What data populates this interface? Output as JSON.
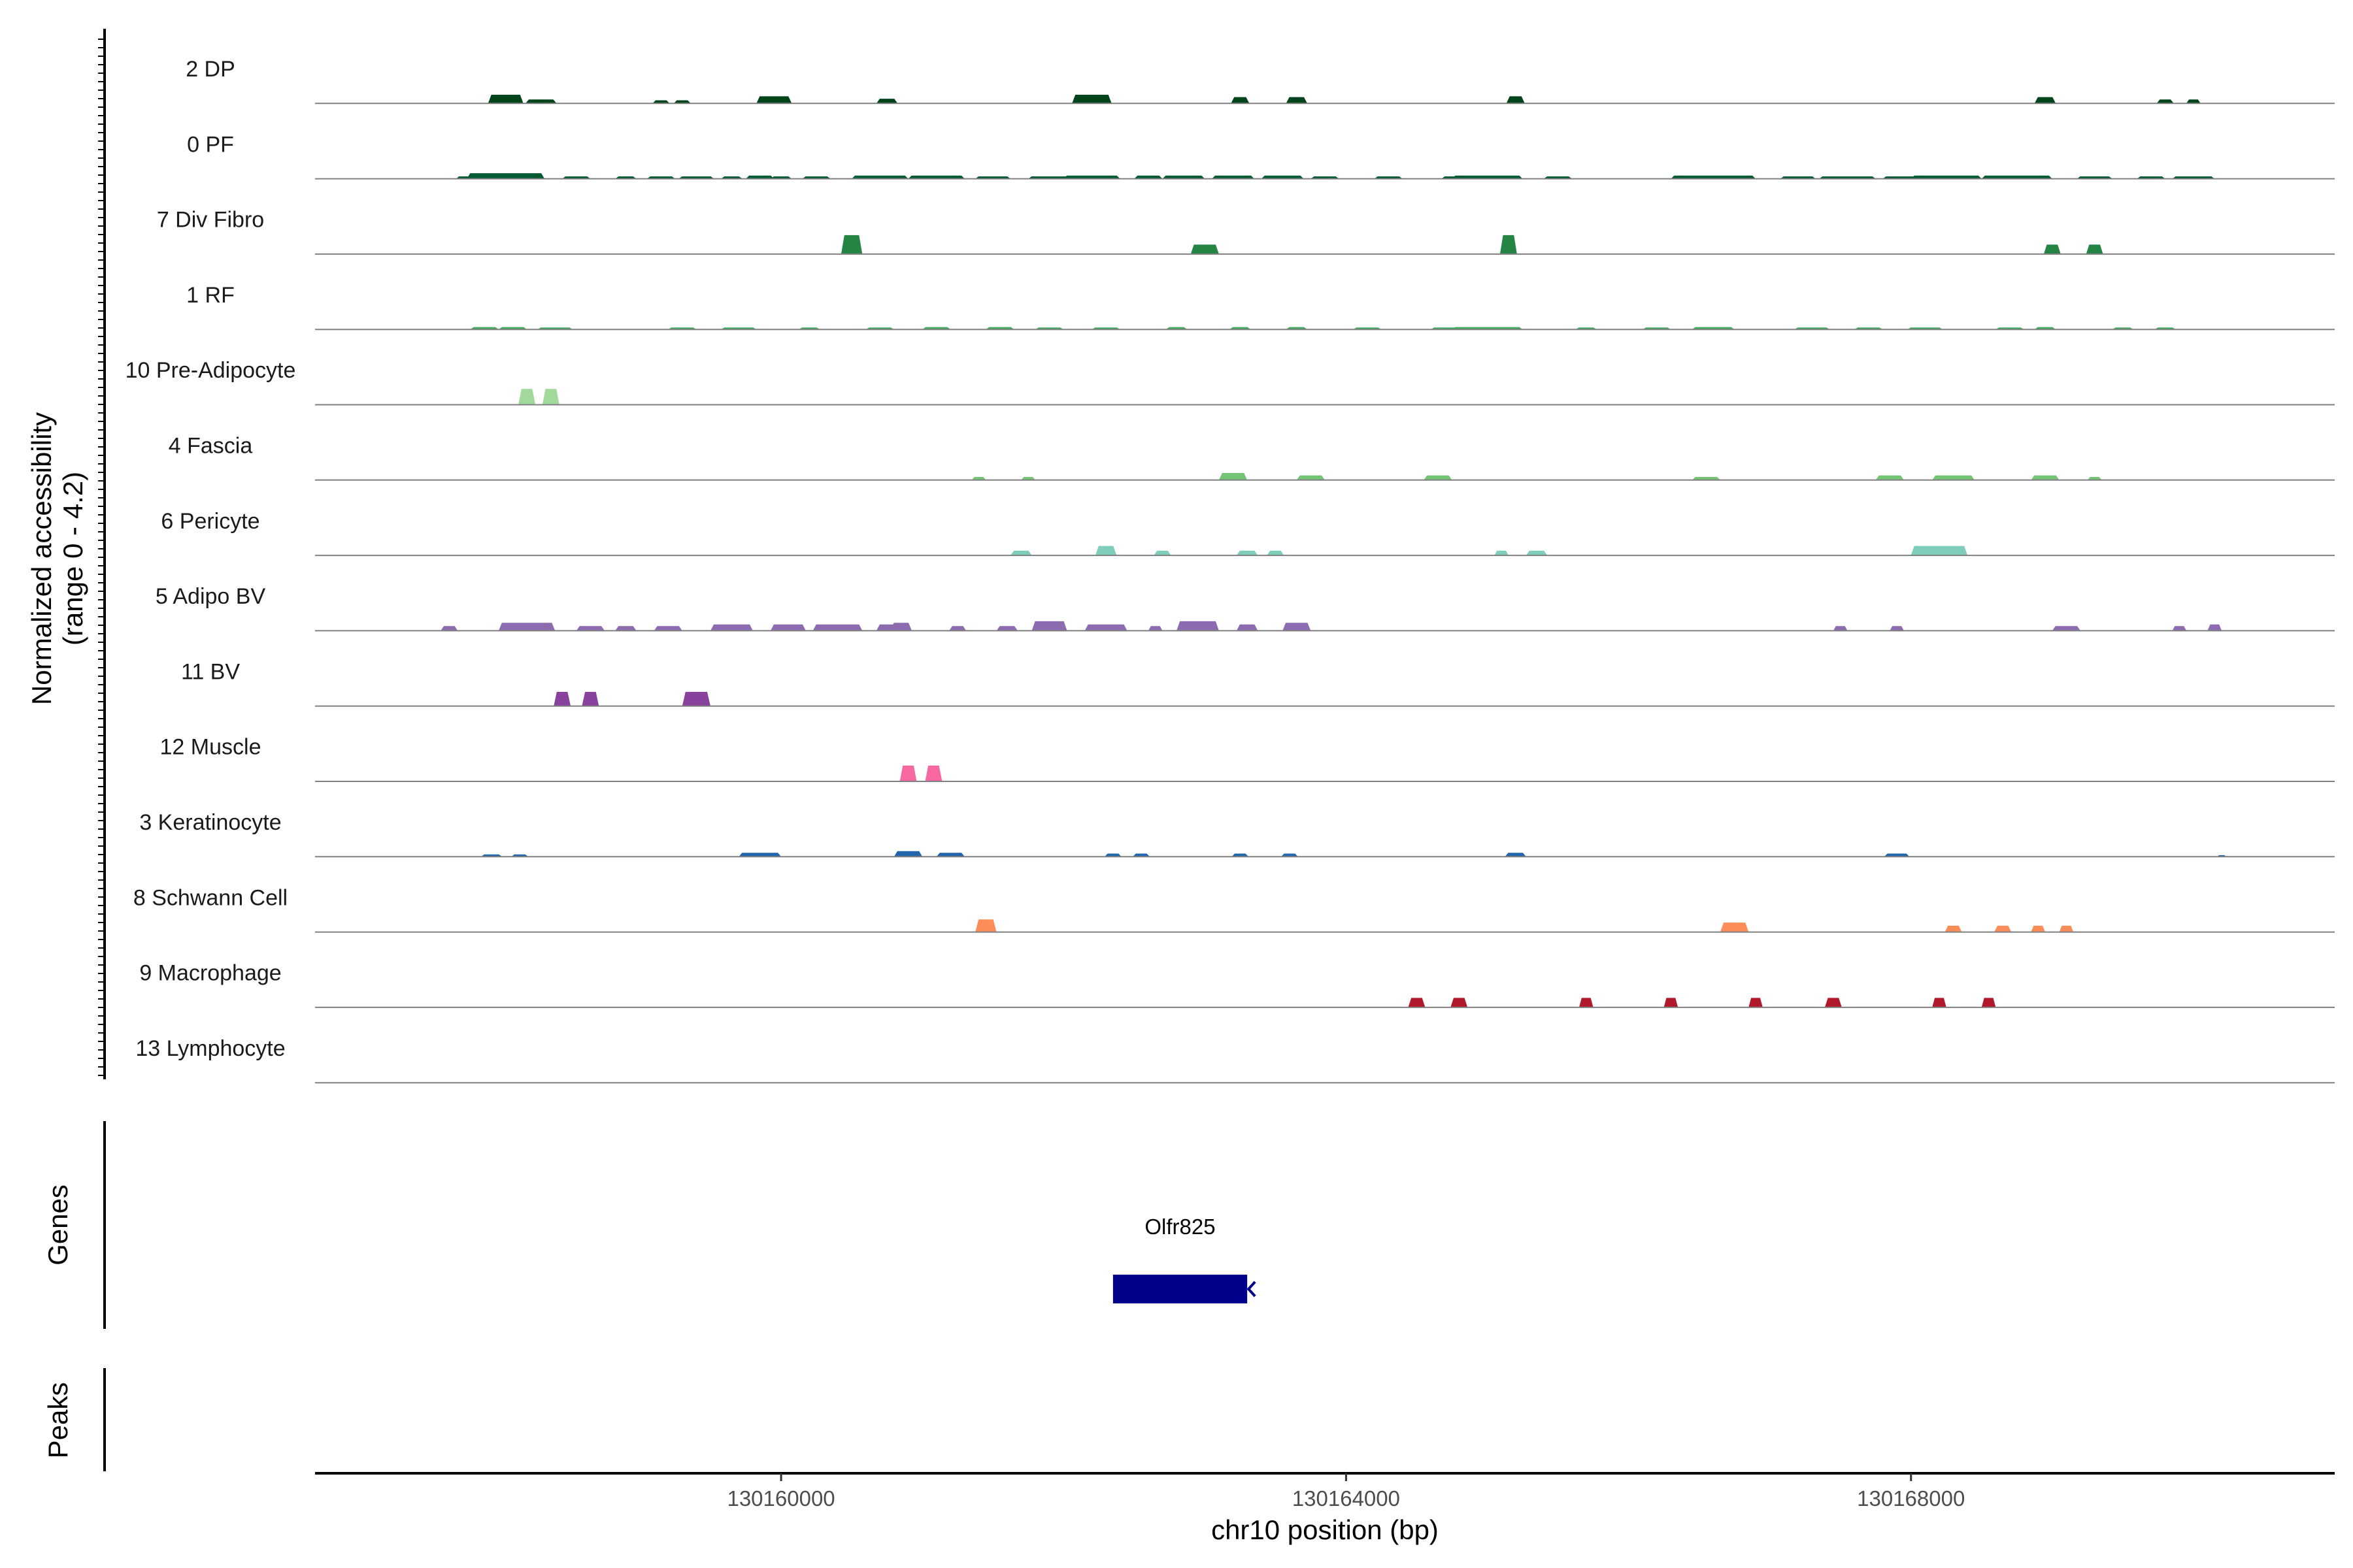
{
  "chart_data": {
    "type": "area",
    "ylabel_line1": "Normalized accessibility",
    "ylabel_line2": "(range 0 - 4.2)",
    "xlabel": "chr10 position (bp)",
    "xlim": [
      130156700,
      130171000
    ],
    "ylim": [
      0,
      4.2
    ],
    "x_ticks": [
      130160000,
      130164000,
      130168000
    ],
    "x_tick_labels": [
      "130160000",
      "130164000",
      "130168000"
    ],
    "genes_label": "Genes",
    "peaks_label": "Peaks",
    "genes": [
      {
        "name": "Olfr825",
        "start": 130162350,
        "end": 130163300,
        "strand": "-",
        "color": "#00008B"
      }
    ],
    "tracks": [
      {
        "name": "2 DP",
        "color": "#00441b",
        "peaks": [
          [
            130158050,
            250,
            0.55
          ],
          [
            130158300,
            220,
            0.25
          ],
          [
            130159150,
            120,
            0.2
          ],
          [
            130159300,
            120,
            0.2
          ],
          [
            130159950,
            250,
            0.45
          ],
          [
            130160750,
            150,
            0.3
          ],
          [
            130162200,
            280,
            0.55
          ],
          [
            130163250,
            130,
            0.4
          ],
          [
            130163650,
            150,
            0.4
          ],
          [
            130165200,
            130,
            0.45
          ],
          [
            130168950,
            150,
            0.4
          ],
          [
            130169800,
            120,
            0.25
          ],
          [
            130170000,
            100,
            0.25
          ]
        ]
      },
      {
        "name": "0 PF",
        "color": "#005a32",
        "peaks": [
          [
            130157750,
            100,
            0.15
          ],
          [
            130157950,
            120,
            0.2
          ],
          [
            130158050,
            550,
            0.35
          ],
          [
            130158550,
            200,
            0.15
          ],
          [
            130158900,
            150,
            0.15
          ],
          [
            130159150,
            200,
            0.15
          ],
          [
            130159400,
            250,
            0.15
          ],
          [
            130159650,
            150,
            0.15
          ],
          [
            130159850,
            200,
            0.2
          ],
          [
            130160000,
            150,
            0.15
          ],
          [
            130160250,
            200,
            0.15
          ],
          [
            130160700,
            400,
            0.2
          ],
          [
            130161100,
            400,
            0.2
          ],
          [
            130161500,
            250,
            0.15
          ],
          [
            130161900,
            300,
            0.15
          ],
          [
            130162200,
            400,
            0.2
          ],
          [
            130162600,
            200,
            0.2
          ],
          [
            130162850,
            300,
            0.2
          ],
          [
            130163200,
            300,
            0.2
          ],
          [
            130163550,
            300,
            0.2
          ],
          [
            130163850,
            200,
            0.15
          ],
          [
            130164300,
            200,
            0.15
          ],
          [
            130164750,
            150,
            0.15
          ],
          [
            130165000,
            500,
            0.2
          ],
          [
            130165500,
            200,
            0.15
          ],
          [
            130166600,
            600,
            0.2
          ],
          [
            130167200,
            250,
            0.15
          ],
          [
            130167550,
            400,
            0.15
          ],
          [
            130167950,
            300,
            0.15
          ],
          [
            130168250,
            500,
            0.2
          ],
          [
            130168750,
            500,
            0.2
          ],
          [
            130169300,
            250,
            0.15
          ],
          [
            130169700,
            200,
            0.15
          ],
          [
            130170000,
            300,
            0.15
          ]
        ]
      },
      {
        "name": "7 Div Fibro",
        "color": "#238443",
        "peaks": [
          [
            130160500,
            150,
            1.2
          ],
          [
            130163000,
            200,
            0.6
          ],
          [
            130165150,
            120,
            1.2
          ],
          [
            130169000,
            120,
            0.6
          ],
          [
            130169300,
            120,
            0.6
          ]
        ]
      },
      {
        "name": "1 RF",
        "color": "#41ab5d",
        "peaks": [
          [
            130157900,
            200,
            0.15
          ],
          [
            130158100,
            200,
            0.15
          ],
          [
            130158400,
            250,
            0.12
          ],
          [
            130159300,
            200,
            0.12
          ],
          [
            130159700,
            250,
            0.12
          ],
          [
            130160200,
            150,
            0.12
          ],
          [
            130160700,
            200,
            0.12
          ],
          [
            130161100,
            200,
            0.15
          ],
          [
            130161550,
            200,
            0.15
          ],
          [
            130161900,
            200,
            0.12
          ],
          [
            130162300,
            200,
            0.12
          ],
          [
            130162800,
            150,
            0.15
          ],
          [
            130163250,
            150,
            0.15
          ],
          [
            130163650,
            150,
            0.15
          ],
          [
            130164150,
            200,
            0.12
          ],
          [
            130164700,
            200,
            0.12
          ],
          [
            130165000,
            500,
            0.15
          ],
          [
            130165700,
            150,
            0.12
          ],
          [
            130166200,
            200,
            0.12
          ],
          [
            130166600,
            300,
            0.15
          ],
          [
            130167300,
            250,
            0.12
          ],
          [
            130167700,
            200,
            0.12
          ],
          [
            130168100,
            250,
            0.12
          ],
          [
            130168700,
            200,
            0.12
          ],
          [
            130168950,
            150,
            0.15
          ],
          [
            130169500,
            150,
            0.12
          ],
          [
            130169800,
            150,
            0.12
          ]
        ]
      },
      {
        "name": "10 Pre-Adipocyte",
        "color": "#a1d99b",
        "peaks": [
          [
            130158200,
            120,
            1.0
          ],
          [
            130158370,
            120,
            1.0
          ]
        ]
      },
      {
        "name": "4 Fascia",
        "color": "#74c476",
        "peaks": [
          [
            130161400,
            100,
            0.2
          ],
          [
            130161750,
            100,
            0.2
          ],
          [
            130163200,
            200,
            0.45
          ],
          [
            130163750,
            200,
            0.3
          ],
          [
            130164650,
            200,
            0.3
          ],
          [
            130166550,
            200,
            0.2
          ],
          [
            130167850,
            200,
            0.3
          ],
          [
            130168300,
            300,
            0.3
          ],
          [
            130168950,
            200,
            0.3
          ],
          [
            130169300,
            100,
            0.2
          ]
        ]
      },
      {
        "name": "6 Pericyte",
        "color": "#7fcdbb",
        "peaks": [
          [
            130161700,
            150,
            0.3
          ],
          [
            130162300,
            150,
            0.6
          ],
          [
            130162700,
            120,
            0.3
          ],
          [
            130163300,
            150,
            0.3
          ],
          [
            130163500,
            120,
            0.3
          ],
          [
            130165100,
            100,
            0.3
          ],
          [
            130165350,
            150,
            0.3
          ],
          [
            130168200,
            400,
            0.6
          ]
        ]
      },
      {
        "name": "5 Adipo BV",
        "color": "#8c6bb1",
        "peaks": [
          [
            130157650,
            120,
            0.3
          ],
          [
            130158200,
            400,
            0.5
          ],
          [
            130158650,
            200,
            0.3
          ],
          [
            130158900,
            150,
            0.3
          ],
          [
            130159200,
            200,
            0.3
          ],
          [
            130159650,
            300,
            0.4
          ],
          [
            130160050,
            250,
            0.4
          ],
          [
            130160400,
            350,
            0.4
          ],
          [
            130160750,
            150,
            0.4
          ],
          [
            130160850,
            150,
            0.5
          ],
          [
            130161250,
            120,
            0.3
          ],
          [
            130161600,
            150,
            0.3
          ],
          [
            130161900,
            250,
            0.6
          ],
          [
            130162300,
            300,
            0.4
          ],
          [
            130162650,
            100,
            0.3
          ],
          [
            130162950,
            300,
            0.6
          ],
          [
            130163300,
            150,
            0.4
          ],
          [
            130163650,
            200,
            0.5
          ],
          [
            130167500,
            100,
            0.3
          ],
          [
            130167900,
            100,
            0.3
          ],
          [
            130169100,
            200,
            0.3
          ],
          [
            130169900,
            100,
            0.3
          ],
          [
            130170150,
            100,
            0.4
          ]
        ]
      },
      {
        "name": "11 BV",
        "color": "#88419d",
        "peaks": [
          [
            130158450,
            120,
            0.9
          ],
          [
            130158650,
            120,
            0.9
          ],
          [
            130159400,
            200,
            0.9
          ]
        ]
      },
      {
        "name": "12 Muscle",
        "color": "#f768a1",
        "peaks": [
          [
            130160900,
            120,
            1.0
          ],
          [
            130161080,
            120,
            1.0
          ]
        ]
      },
      {
        "name": "3 Keratinocyte",
        "color": "#2166ac",
        "peaks": [
          [
            130157950,
            150,
            0.15
          ],
          [
            130158150,
            120,
            0.15
          ],
          [
            130159850,
            300,
            0.25
          ],
          [
            130160900,
            200,
            0.35
          ],
          [
            130161200,
            200,
            0.25
          ],
          [
            130162350,
            120,
            0.2
          ],
          [
            130162550,
            120,
            0.2
          ],
          [
            130163250,
            120,
            0.2
          ],
          [
            130163600,
            120,
            0.2
          ],
          [
            130165200,
            150,
            0.25
          ],
          [
            130167900,
            180,
            0.2
          ],
          [
            130170200,
            60,
            0.1
          ]
        ]
      },
      {
        "name": "8 Schwann Cell",
        "color": "#fc8d59",
        "peaks": [
          [
            130161450,
            150,
            0.8
          ],
          [
            130166750,
            200,
            0.6
          ],
          [
            130168300,
            120,
            0.4
          ],
          [
            130168650,
            120,
            0.4
          ],
          [
            130168900,
            100,
            0.4
          ],
          [
            130169100,
            100,
            0.4
          ]
        ]
      },
      {
        "name": "9 Macrophage",
        "color": "#b2182b",
        "peaks": [
          [
            130164500,
            120,
            0.6
          ],
          [
            130164800,
            120,
            0.6
          ],
          [
            130165700,
            100,
            0.6
          ],
          [
            130166300,
            100,
            0.6
          ],
          [
            130166900,
            100,
            0.6
          ],
          [
            130167450,
            120,
            0.6
          ],
          [
            130168200,
            100,
            0.6
          ],
          [
            130168550,
            100,
            0.6
          ]
        ]
      },
      {
        "name": "13 Lymphocyte",
        "color": "#636363",
        "peaks": []
      }
    ]
  }
}
